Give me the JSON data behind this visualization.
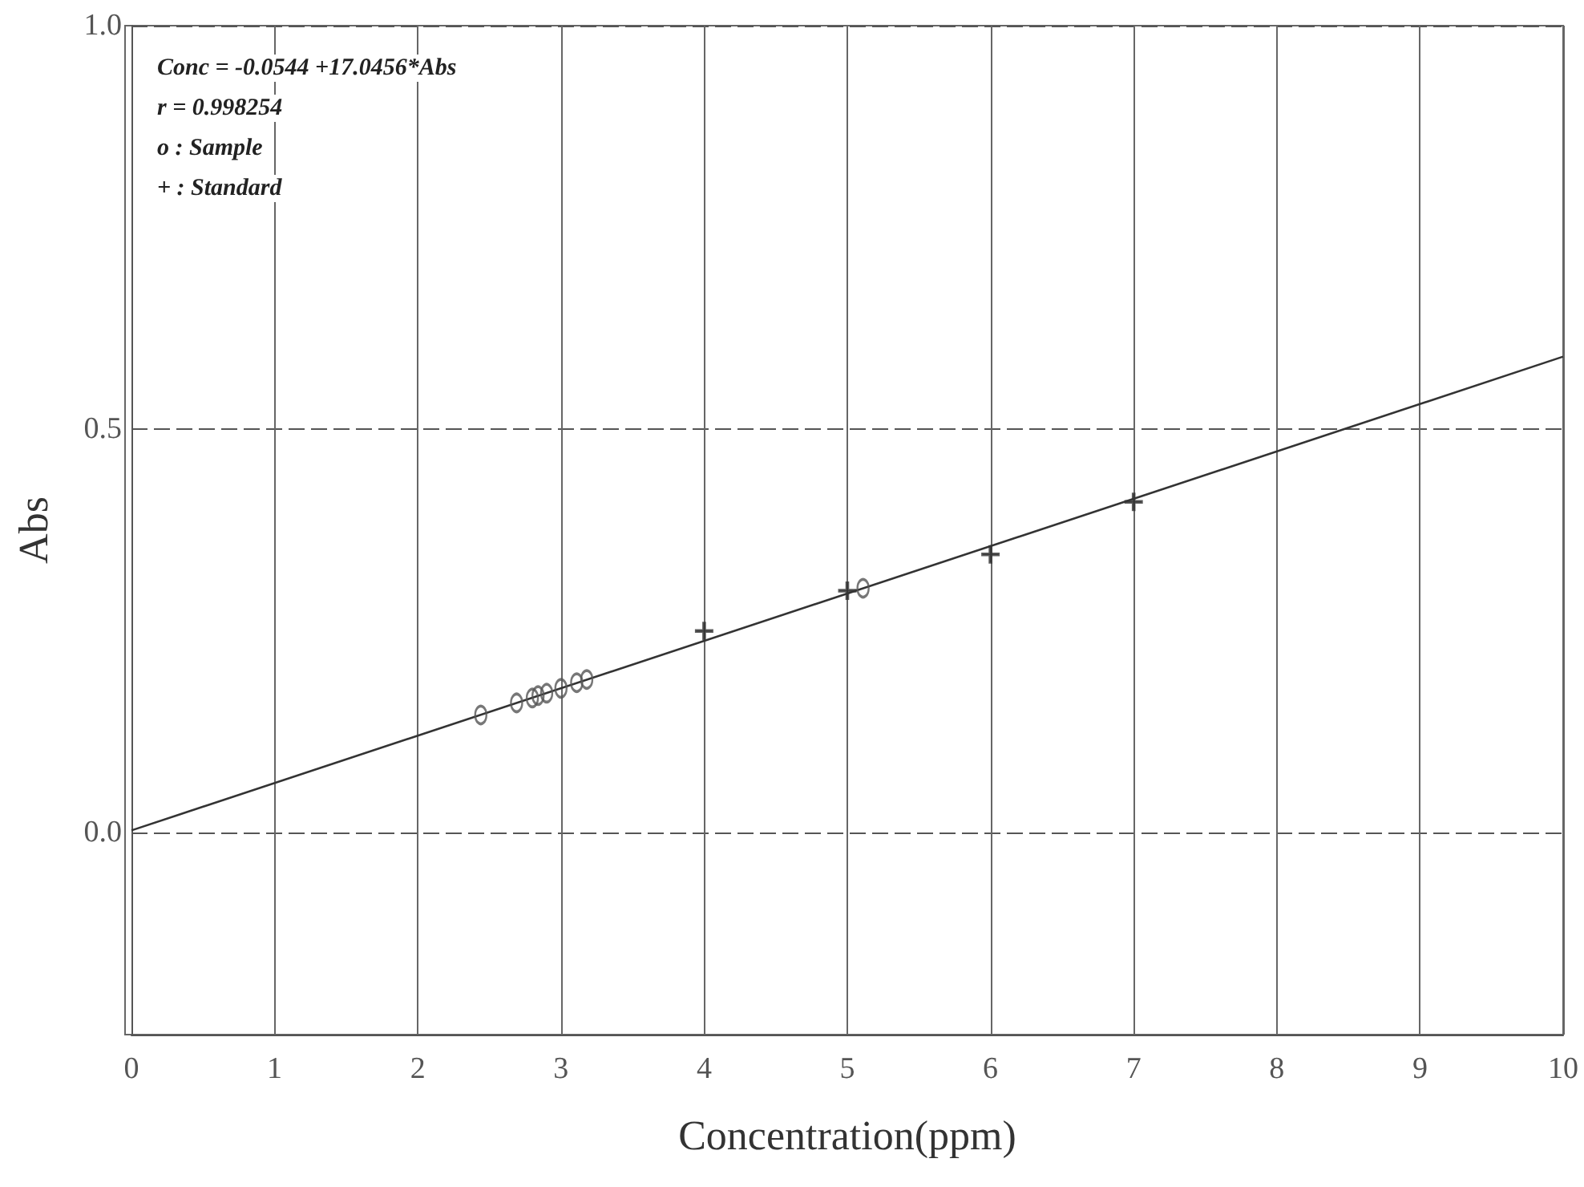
{
  "chart_data": {
    "type": "scatter",
    "xlabel": "Concentration(ppm)",
    "ylabel": "Abs",
    "xlim": [
      0,
      10
    ],
    "ylim": [
      -0.25,
      1.0
    ],
    "xticks": [
      0,
      1,
      2,
      3,
      4,
      5,
      6,
      7,
      8,
      9,
      10
    ],
    "yticks": [
      {
        "value": 0,
        "label": "0.0"
      },
      {
        "value": 0.5,
        "label": "0.5"
      },
      {
        "value": 1.0,
        "label": "1.0"
      }
    ],
    "grid": true,
    "annotations": [
      "Conc = -0.0544 +17.0456*Abs",
      "r = 0.998254",
      "o : Sample",
      "+ : Standard"
    ],
    "series": [
      {
        "type": "line",
        "color": "#333333",
        "marker": "none",
        "line_style": "solid",
        "x": [
          0,
          10
        ],
        "values": [
          0.003,
          0.59
        ]
      },
      {
        "color": "#555555",
        "marker": "circle",
        "x": [
          2.44,
          2.69,
          2.8,
          2.84,
          2.9,
          3.0,
          3.11,
          3.18,
          5.11
        ],
        "values": [
          0.146,
          0.161,
          0.167,
          0.17,
          0.173,
          0.179,
          0.186,
          0.19,
          0.303
        ]
      },
      {
        "color": "#333333",
        "marker": "cross",
        "x": [
          4,
          5,
          6,
          7
        ],
        "values": [
          0.25,
          0.3,
          0.345,
          0.41
        ]
      }
    ]
  }
}
